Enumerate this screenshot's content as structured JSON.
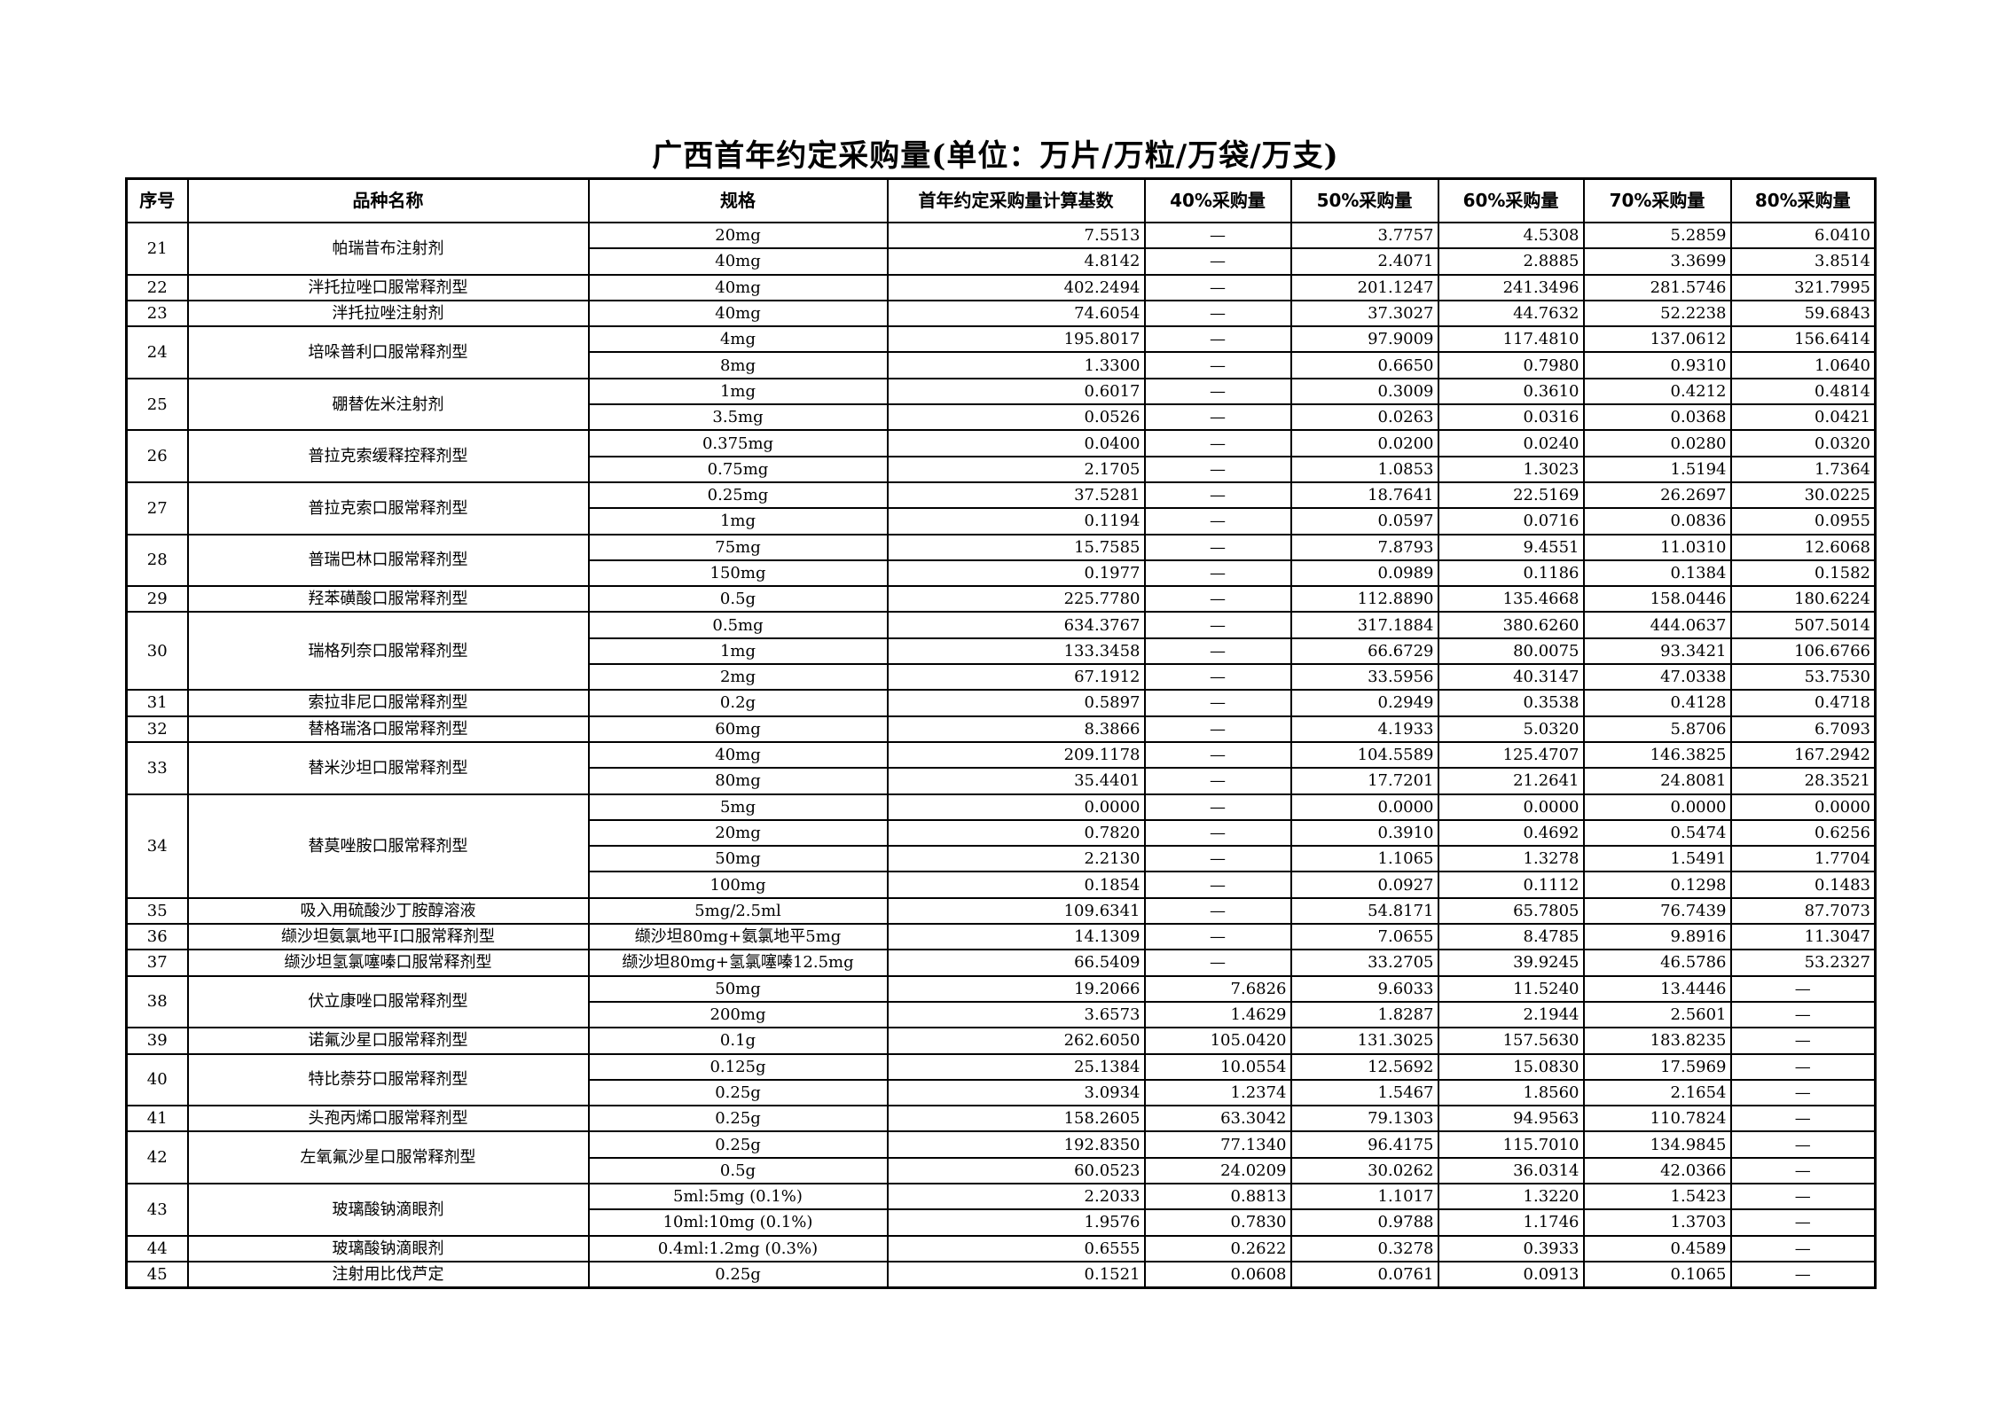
{
  "title": "广西首年约定采购量(单位：万片/万粒/万袋/万支)",
  "headers": [
    "序号",
    "品种名称",
    "规格",
    "首年约定采购量计算基数",
    "40%采购量",
    "50%采购量",
    "60%采购量",
    "70%采购量",
    "80%采购量"
  ],
  "items": [
    {
      "no": "21",
      "name": "帕瑞昔布注射剂",
      "rows": [
        [
          "20mg",
          "7.5513",
          "—",
          "3.7757",
          "4.5308",
          "5.2859",
          "6.0410"
        ],
        [
          "40mg",
          "4.8142",
          "—",
          "2.4071",
          "2.8885",
          "3.3699",
          "3.8514"
        ]
      ]
    },
    {
      "no": "22",
      "name": "泮托拉唑口服常释剂型",
      "rows": [
        [
          "40mg",
          "402.2494",
          "—",
          "201.1247",
          "241.3496",
          "281.5746",
          "321.7995"
        ]
      ]
    },
    {
      "no": "23",
      "name": "泮托拉唑注射剂",
      "rows": [
        [
          "40mg",
          "74.6054",
          "—",
          "37.3027",
          "44.7632",
          "52.2238",
          "59.6843"
        ]
      ]
    },
    {
      "no": "24",
      "name": "培哚普利口服常释剂型",
      "rows": [
        [
          "4mg",
          "195.8017",
          "—",
          "97.9009",
          "117.4810",
          "137.0612",
          "156.6414"
        ],
        [
          "8mg",
          "1.3300",
          "—",
          "0.6650",
          "0.7980",
          "0.9310",
          "1.0640"
        ]
      ]
    },
    {
      "no": "25",
      "name": "硼替佐米注射剂",
      "rows": [
        [
          "1mg",
          "0.6017",
          "—",
          "0.3009",
          "0.3610",
          "0.4212",
          "0.4814"
        ],
        [
          "3.5mg",
          "0.0526",
          "—",
          "0.0263",
          "0.0316",
          "0.0368",
          "0.0421"
        ]
      ]
    },
    {
      "no": "26",
      "name": "普拉克索缓释控释剂型",
      "rows": [
        [
          "0.375mg",
          "0.0400",
          "—",
          "0.0200",
          "0.0240",
          "0.0280",
          "0.0320"
        ],
        [
          "0.75mg",
          "2.1705",
          "—",
          "1.0853",
          "1.3023",
          "1.5194",
          "1.7364"
        ]
      ]
    },
    {
      "no": "27",
      "name": "普拉克索口服常释剂型",
      "rows": [
        [
          "0.25mg",
          "37.5281",
          "—",
          "18.7641",
          "22.5169",
          "26.2697",
          "30.0225"
        ],
        [
          "1mg",
          "0.1194",
          "—",
          "0.0597",
          "0.0716",
          "0.0836",
          "0.0955"
        ]
      ]
    },
    {
      "no": "28",
      "name": "普瑞巴林口服常释剂型",
      "rows": [
        [
          "75mg",
          "15.7585",
          "—",
          "7.8793",
          "9.4551",
          "11.0310",
          "12.6068"
        ],
        [
          "150mg",
          "0.1977",
          "—",
          "0.0989",
          "0.1186",
          "0.1384",
          "0.1582"
        ]
      ]
    },
    {
      "no": "29",
      "name": "羟苯磺酸口服常释剂型",
      "rows": [
        [
          "0.5g",
          "225.7780",
          "—",
          "112.8890",
          "135.4668",
          "158.0446",
          "180.6224"
        ]
      ]
    },
    {
      "no": "30",
      "name": "瑞格列奈口服常释剂型",
      "rows": [
        [
          "0.5mg",
          "634.3767",
          "—",
          "317.1884",
          "380.6260",
          "444.0637",
          "507.5014"
        ],
        [
          "1mg",
          "133.3458",
          "—",
          "66.6729",
          "80.0075",
          "93.3421",
          "106.6766"
        ],
        [
          "2mg",
          "67.1912",
          "—",
          "33.5956",
          "40.3147",
          "47.0338",
          "53.7530"
        ]
      ]
    },
    {
      "no": "31",
      "name": "索拉非尼口服常释剂型",
      "rows": [
        [
          "0.2g",
          "0.5897",
          "—",
          "0.2949",
          "0.3538",
          "0.4128",
          "0.4718"
        ]
      ]
    },
    {
      "no": "32",
      "name": "替格瑞洛口服常释剂型",
      "rows": [
        [
          "60mg",
          "8.3866",
          "—",
          "4.1933",
          "5.0320",
          "5.8706",
          "6.7093"
        ]
      ]
    },
    {
      "no": "33",
      "name": "替米沙坦口服常释剂型",
      "rows": [
        [
          "40mg",
          "209.1178",
          "—",
          "104.5589",
          "125.4707",
          "146.3825",
          "167.2942"
        ],
        [
          "80mg",
          "35.4401",
          "—",
          "17.7201",
          "21.2641",
          "24.8081",
          "28.3521"
        ]
      ]
    },
    {
      "no": "34",
      "name": "替莫唑胺口服常释剂型",
      "rows": [
        [
          "5mg",
          "0.0000",
          "—",
          "0.0000",
          "0.0000",
          "0.0000",
          "0.0000"
        ],
        [
          "20mg",
          "0.7820",
          "—",
          "0.3910",
          "0.4692",
          "0.5474",
          "0.6256"
        ],
        [
          "50mg",
          "2.2130",
          "—",
          "1.1065",
          "1.3278",
          "1.5491",
          "1.7704"
        ],
        [
          "100mg",
          "0.1854",
          "—",
          "0.0927",
          "0.1112",
          "0.1298",
          "0.1483"
        ]
      ]
    },
    {
      "no": "35",
      "name": "吸入用硫酸沙丁胺醇溶液",
      "rows": [
        [
          "5mg/2.5ml",
          "109.6341",
          "—",
          "54.8171",
          "65.7805",
          "76.7439",
          "87.7073"
        ]
      ]
    },
    {
      "no": "36",
      "name": "缬沙坦氨氯地平Ⅰ口服常释剂型",
      "rows": [
        [
          "缬沙坦80mg+氨氯地平5mg",
          "14.1309",
          "—",
          "7.0655",
          "8.4785",
          "9.8916",
          "11.3047"
        ]
      ]
    },
    {
      "no": "37",
      "name": "缬沙坦氢氯噻嗪口服常释剂型",
      "rows": [
        [
          "缬沙坦80mg+氢氯噻嗪12.5mg",
          "66.5409",
          "—",
          "33.2705",
          "39.9245",
          "46.5786",
          "53.2327"
        ]
      ]
    },
    {
      "no": "38",
      "name": "伏立康唑口服常释剂型",
      "rows": [
        [
          "50mg",
          "19.2066",
          "7.6826",
          "9.6033",
          "11.5240",
          "13.4446",
          "—"
        ],
        [
          "200mg",
          "3.6573",
          "1.4629",
          "1.8287",
          "2.1944",
          "2.5601",
          "—"
        ]
      ]
    },
    {
      "no": "39",
      "name": "诺氟沙星口服常释剂型",
      "rows": [
        [
          "0.1g",
          "262.6050",
          "105.0420",
          "131.3025",
          "157.5630",
          "183.8235",
          "—"
        ]
      ]
    },
    {
      "no": "40",
      "name": "特比萘芬口服常释剂型",
      "rows": [
        [
          "0.125g",
          "25.1384",
          "10.0554",
          "12.5692",
          "15.0830",
          "17.5969",
          "—"
        ],
        [
          "0.25g",
          "3.0934",
          "1.2374",
          "1.5467",
          "1.8560",
          "2.1654",
          "—"
        ]
      ]
    },
    {
      "no": "41",
      "name": "头孢丙烯口服常释剂型",
      "rows": [
        [
          "0.25g",
          "158.2605",
          "63.3042",
          "79.1303",
          "94.9563",
          "110.7824",
          "—"
        ]
      ]
    },
    {
      "no": "42",
      "name": "左氧氟沙星口服常释剂型",
      "rows": [
        [
          "0.25g",
          "192.8350",
          "77.1340",
          "96.4175",
          "115.7010",
          "134.9845",
          "—"
        ],
        [
          "0.5g",
          "60.0523",
          "24.0209",
          "30.0262",
          "36.0314",
          "42.0366",
          "—"
        ]
      ]
    },
    {
      "no": "43",
      "name": "玻璃酸钠滴眼剂",
      "rows": [
        [
          "5ml:5mg (0.1%)",
          "2.2033",
          "0.8813",
          "1.1017",
          "1.3220",
          "1.5423",
          "—"
        ],
        [
          "10ml:10mg (0.1%)",
          "1.9576",
          "0.7830",
          "0.9788",
          "1.1746",
          "1.3703",
          "—"
        ]
      ]
    },
    {
      "no": "44",
      "name": "玻璃酸钠滴眼剂",
      "rows": [
        [
          "0.4ml:1.2mg (0.3%)",
          "0.6555",
          "0.2622",
          "0.3278",
          "0.3933",
          "0.4589",
          "—"
        ]
      ]
    },
    {
      "no": "45",
      "name": "注射用比伐芦定",
      "rows": [
        [
          "0.25g",
          "0.1521",
          "0.0608",
          "0.0761",
          "0.0913",
          "0.1065",
          "—"
        ]
      ]
    }
  ]
}
